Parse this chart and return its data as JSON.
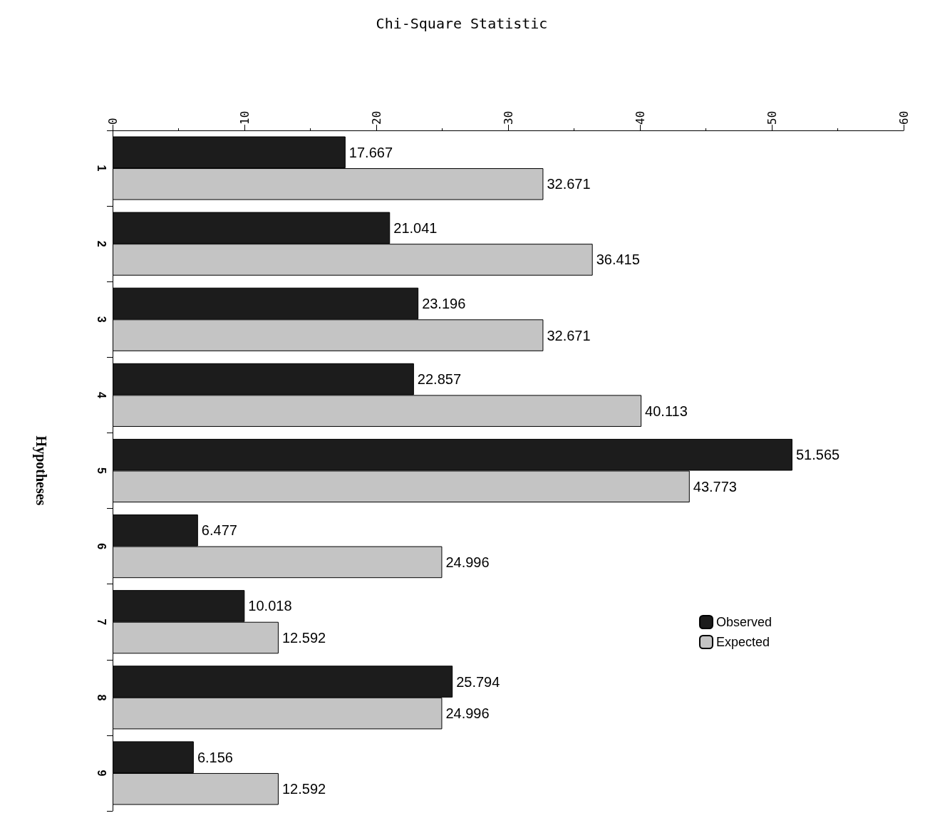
{
  "chart_data": {
    "type": "bar",
    "orientation": "horizontal",
    "title": "Chi-Square Statistic",
    "ylabel": "Hypotheses",
    "categories": [
      "1",
      "2",
      "3",
      "4",
      "5",
      "6",
      "7",
      "8",
      "9"
    ],
    "series": [
      {
        "name": "Observed",
        "color": "#1c1c1c",
        "values": [
          17.667,
          21.041,
          23.196,
          22.857,
          51.565,
          6.477,
          10.018,
          25.794,
          6.156
        ]
      },
      {
        "name": "Expected",
        "color": "#c4c4c4",
        "values": [
          32.671,
          36.415,
          32.671,
          40.113,
          43.773,
          24.996,
          12.592,
          24.996,
          12.592
        ]
      }
    ],
    "xlim": [
      0,
      60
    ],
    "xticks": [
      0,
      10,
      20,
      30,
      40,
      50,
      60
    ],
    "data_labels": true,
    "grid": false,
    "legend": "right"
  }
}
